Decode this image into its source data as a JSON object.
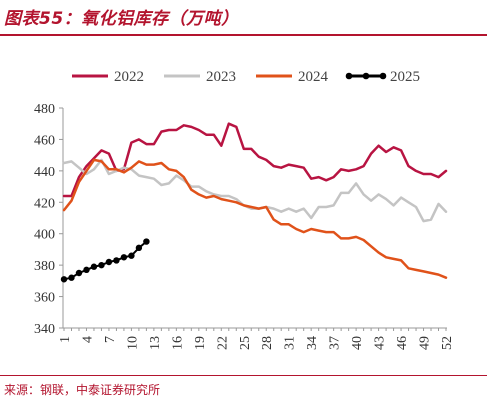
{
  "header": {
    "title": "图表55：氧化铝库存（万吨）"
  },
  "footer": {
    "source": "来源：钢联，中泰证券研究所"
  },
  "colors": {
    "accent": "#b3142e"
  },
  "chart_data": {
    "type": "line",
    "title": "图表55：氧化铝库存（万吨）",
    "xlabel": "",
    "ylabel": "",
    "ylim": [
      340,
      480
    ],
    "xlim": [
      1,
      52
    ],
    "yticks": [
      340,
      360,
      380,
      400,
      420,
      440,
      460,
      480
    ],
    "xticks": [
      1,
      4,
      7,
      10,
      13,
      16,
      19,
      22,
      25,
      28,
      31,
      34,
      37,
      40,
      43,
      46,
      49,
      52
    ],
    "grid": false,
    "legend": "top",
    "series": [
      {
        "name": "2022",
        "color": "#b81442",
        "marker": false,
        "x": [
          1,
          2,
          3,
          4,
          5,
          6,
          7,
          8,
          9,
          10,
          11,
          12,
          13,
          14,
          15,
          16,
          17,
          18,
          19,
          20,
          21,
          22,
          23,
          24,
          25,
          26,
          27,
          28,
          29,
          30,
          31,
          32,
          33,
          34,
          35,
          36,
          37,
          38,
          39,
          40,
          41,
          42,
          43,
          44,
          45,
          46,
          47,
          48,
          49,
          50,
          51,
          52
        ],
        "values": [
          424,
          424,
          436,
          443,
          448,
          453,
          451,
          440,
          441,
          458,
          460,
          457,
          457,
          465,
          466,
          466,
          469,
          468,
          466,
          463,
          463,
          456,
          470,
          468,
          454,
          454,
          449,
          447,
          443,
          442,
          444,
          443,
          442,
          435,
          436,
          434,
          436,
          441,
          440,
          441,
          443,
          451,
          456,
          452,
          455,
          453,
          443,
          440,
          438,
          438,
          436,
          440
        ]
      },
      {
        "name": "2023",
        "color": "#c4c4c4",
        "marker": false,
        "x": [
          1,
          2,
          3,
          4,
          5,
          6,
          7,
          8,
          9,
          10,
          11,
          12,
          13,
          14,
          15,
          16,
          17,
          18,
          19,
          20,
          21,
          22,
          23,
          24,
          25,
          26,
          27,
          28,
          29,
          30,
          31,
          32,
          33,
          34,
          35,
          36,
          37,
          38,
          39,
          40,
          41,
          42,
          43,
          44,
          45,
          46,
          47,
          48,
          49,
          50,
          51,
          52
        ],
        "values": [
          445,
          446,
          442,
          438,
          441,
          447,
          438,
          440,
          442,
          441,
          437,
          436,
          435,
          431,
          432,
          437,
          434,
          430,
          430,
          427,
          425,
          424,
          424,
          422,
          418,
          416,
          416,
          417,
          416,
          414,
          416,
          414,
          416,
          410,
          417,
          417,
          418,
          426,
          426,
          432,
          425,
          421,
          425,
          422,
          418,
          423,
          420,
          417,
          408,
          409,
          419,
          414
        ]
      },
      {
        "name": "2024",
        "color": "#e0521a",
        "marker": false,
        "x": [
          1,
          2,
          3,
          4,
          5,
          6,
          7,
          8,
          9,
          10,
          11,
          12,
          13,
          14,
          15,
          16,
          17,
          18,
          19,
          20,
          21,
          22,
          23,
          24,
          25,
          26,
          27,
          28,
          29,
          30,
          31,
          32,
          33,
          34,
          35,
          36,
          37,
          38,
          39,
          40,
          41,
          42,
          43,
          44,
          45,
          46,
          47,
          48,
          49,
          50,
          51,
          52
        ],
        "values": [
          415,
          421,
          433,
          440,
          447,
          446,
          441,
          441,
          439,
          442,
          446,
          444,
          444,
          445,
          441,
          440,
          436,
          428,
          425,
          423,
          424,
          422,
          421,
          420,
          418,
          417,
          416,
          417,
          409,
          406,
          406,
          403,
          401,
          403,
          402,
          401,
          401,
          397,
          397,
          398,
          396,
          392,
          388,
          385,
          384,
          383,
          378,
          377,
          376,
          375,
          374,
          372
        ]
      },
      {
        "name": "2025",
        "color": "#000000",
        "marker": true,
        "x": [
          1,
          2,
          3,
          4,
          5,
          6,
          7,
          8,
          9,
          10,
          11,
          12
        ],
        "values": [
          371,
          372,
          375,
          377,
          379,
          380,
          382,
          383,
          385,
          386,
          391,
          395
        ]
      }
    ]
  }
}
